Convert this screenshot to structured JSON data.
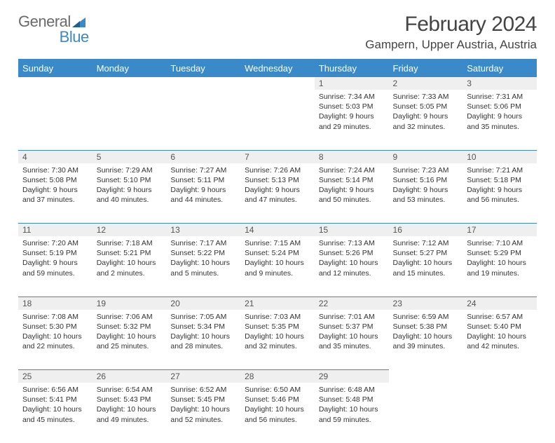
{
  "logo": {
    "text_general": "General",
    "text_blue": "Blue"
  },
  "title": "February 2024",
  "location": "Gampern, Upper Austria, Austria",
  "colors": {
    "header_bg": "#3a8ac9",
    "header_text": "#ffffff",
    "daynum_bg": "#efefef",
    "divider": "#3a8ac9",
    "body_text": "#333333",
    "logo_gray": "#6a6a6a",
    "logo_blue": "#3a8ac9"
  },
  "typography": {
    "title_fontsize": 30,
    "location_fontsize": 17,
    "dayheader_fontsize": 13,
    "daynum_fontsize": 12,
    "cell_fontsize": 10.5
  },
  "day_headers": [
    "Sunday",
    "Monday",
    "Tuesday",
    "Wednesday",
    "Thursday",
    "Friday",
    "Saturday"
  ],
  "weeks": [
    [
      null,
      null,
      null,
      null,
      {
        "n": "1",
        "sr": "Sunrise: 7:34 AM",
        "ss": "Sunset: 5:03 PM",
        "dl1": "Daylight: 9 hours",
        "dl2": "and 29 minutes."
      },
      {
        "n": "2",
        "sr": "Sunrise: 7:33 AM",
        "ss": "Sunset: 5:05 PM",
        "dl1": "Daylight: 9 hours",
        "dl2": "and 32 minutes."
      },
      {
        "n": "3",
        "sr": "Sunrise: 7:31 AM",
        "ss": "Sunset: 5:06 PM",
        "dl1": "Daylight: 9 hours",
        "dl2": "and 35 minutes."
      }
    ],
    [
      {
        "n": "4",
        "sr": "Sunrise: 7:30 AM",
        "ss": "Sunset: 5:08 PM",
        "dl1": "Daylight: 9 hours",
        "dl2": "and 37 minutes."
      },
      {
        "n": "5",
        "sr": "Sunrise: 7:29 AM",
        "ss": "Sunset: 5:10 PM",
        "dl1": "Daylight: 9 hours",
        "dl2": "and 40 minutes."
      },
      {
        "n": "6",
        "sr": "Sunrise: 7:27 AM",
        "ss": "Sunset: 5:11 PM",
        "dl1": "Daylight: 9 hours",
        "dl2": "and 44 minutes."
      },
      {
        "n": "7",
        "sr": "Sunrise: 7:26 AM",
        "ss": "Sunset: 5:13 PM",
        "dl1": "Daylight: 9 hours",
        "dl2": "and 47 minutes."
      },
      {
        "n": "8",
        "sr": "Sunrise: 7:24 AM",
        "ss": "Sunset: 5:14 PM",
        "dl1": "Daylight: 9 hours",
        "dl2": "and 50 minutes."
      },
      {
        "n": "9",
        "sr": "Sunrise: 7:23 AM",
        "ss": "Sunset: 5:16 PM",
        "dl1": "Daylight: 9 hours",
        "dl2": "and 53 minutes."
      },
      {
        "n": "10",
        "sr": "Sunrise: 7:21 AM",
        "ss": "Sunset: 5:18 PM",
        "dl1": "Daylight: 9 hours",
        "dl2": "and 56 minutes."
      }
    ],
    [
      {
        "n": "11",
        "sr": "Sunrise: 7:20 AM",
        "ss": "Sunset: 5:19 PM",
        "dl1": "Daylight: 9 hours",
        "dl2": "and 59 minutes."
      },
      {
        "n": "12",
        "sr": "Sunrise: 7:18 AM",
        "ss": "Sunset: 5:21 PM",
        "dl1": "Daylight: 10 hours",
        "dl2": "and 2 minutes."
      },
      {
        "n": "13",
        "sr": "Sunrise: 7:17 AM",
        "ss": "Sunset: 5:22 PM",
        "dl1": "Daylight: 10 hours",
        "dl2": "and 5 minutes."
      },
      {
        "n": "14",
        "sr": "Sunrise: 7:15 AM",
        "ss": "Sunset: 5:24 PM",
        "dl1": "Daylight: 10 hours",
        "dl2": "and 9 minutes."
      },
      {
        "n": "15",
        "sr": "Sunrise: 7:13 AM",
        "ss": "Sunset: 5:26 PM",
        "dl1": "Daylight: 10 hours",
        "dl2": "and 12 minutes."
      },
      {
        "n": "16",
        "sr": "Sunrise: 7:12 AM",
        "ss": "Sunset: 5:27 PM",
        "dl1": "Daylight: 10 hours",
        "dl2": "and 15 minutes."
      },
      {
        "n": "17",
        "sr": "Sunrise: 7:10 AM",
        "ss": "Sunset: 5:29 PM",
        "dl1": "Daylight: 10 hours",
        "dl2": "and 19 minutes."
      }
    ],
    [
      {
        "n": "18",
        "sr": "Sunrise: 7:08 AM",
        "ss": "Sunset: 5:30 PM",
        "dl1": "Daylight: 10 hours",
        "dl2": "and 22 minutes."
      },
      {
        "n": "19",
        "sr": "Sunrise: 7:06 AM",
        "ss": "Sunset: 5:32 PM",
        "dl1": "Daylight: 10 hours",
        "dl2": "and 25 minutes."
      },
      {
        "n": "20",
        "sr": "Sunrise: 7:05 AM",
        "ss": "Sunset: 5:34 PM",
        "dl1": "Daylight: 10 hours",
        "dl2": "and 28 minutes."
      },
      {
        "n": "21",
        "sr": "Sunrise: 7:03 AM",
        "ss": "Sunset: 5:35 PM",
        "dl1": "Daylight: 10 hours",
        "dl2": "and 32 minutes."
      },
      {
        "n": "22",
        "sr": "Sunrise: 7:01 AM",
        "ss": "Sunset: 5:37 PM",
        "dl1": "Daylight: 10 hours",
        "dl2": "and 35 minutes."
      },
      {
        "n": "23",
        "sr": "Sunrise: 6:59 AM",
        "ss": "Sunset: 5:38 PM",
        "dl1": "Daylight: 10 hours",
        "dl2": "and 39 minutes."
      },
      {
        "n": "24",
        "sr": "Sunrise: 6:57 AM",
        "ss": "Sunset: 5:40 PM",
        "dl1": "Daylight: 10 hours",
        "dl2": "and 42 minutes."
      }
    ],
    [
      {
        "n": "25",
        "sr": "Sunrise: 6:56 AM",
        "ss": "Sunset: 5:41 PM",
        "dl1": "Daylight: 10 hours",
        "dl2": "and 45 minutes."
      },
      {
        "n": "26",
        "sr": "Sunrise: 6:54 AM",
        "ss": "Sunset: 5:43 PM",
        "dl1": "Daylight: 10 hours",
        "dl2": "and 49 minutes."
      },
      {
        "n": "27",
        "sr": "Sunrise: 6:52 AM",
        "ss": "Sunset: 5:45 PM",
        "dl1": "Daylight: 10 hours",
        "dl2": "and 52 minutes."
      },
      {
        "n": "28",
        "sr": "Sunrise: 6:50 AM",
        "ss": "Sunset: 5:46 PM",
        "dl1": "Daylight: 10 hours",
        "dl2": "and 56 minutes."
      },
      {
        "n": "29",
        "sr": "Sunrise: 6:48 AM",
        "ss": "Sunset: 5:48 PM",
        "dl1": "Daylight: 10 hours",
        "dl2": "and 59 minutes."
      },
      null,
      null
    ]
  ]
}
